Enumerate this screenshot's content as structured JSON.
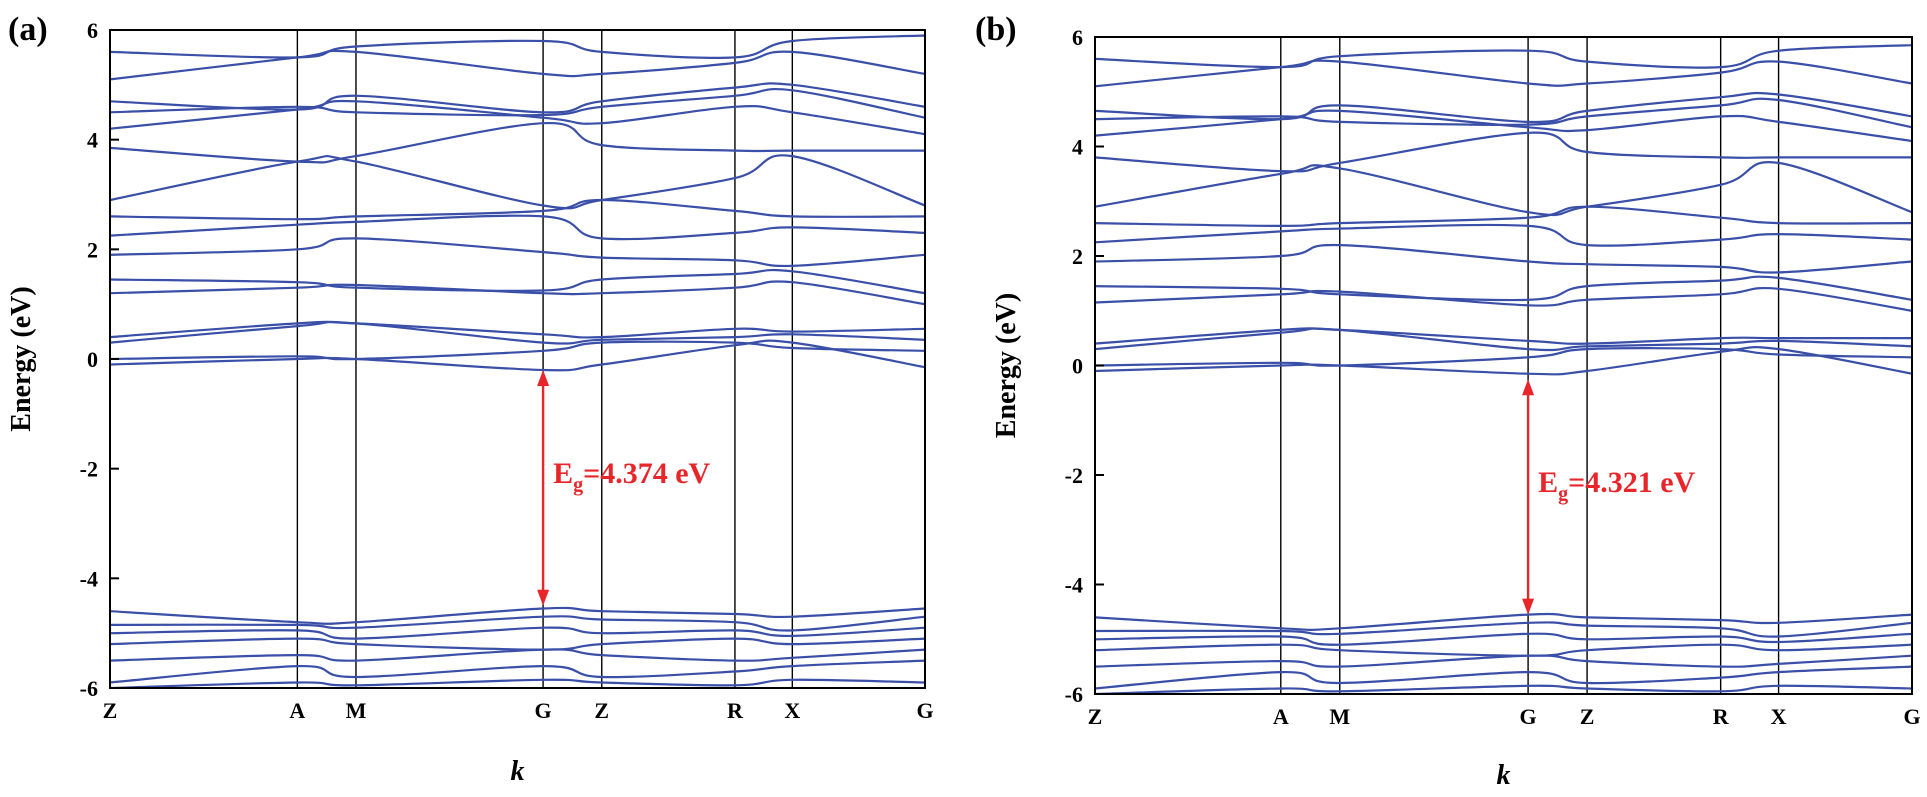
{
  "colors": {
    "band": "#3a4fa8",
    "gap": "#e8262a",
    "axis": "#000000"
  },
  "chart_data": [
    {
      "type": "line",
      "panel_label": "(a)",
      "title": "",
      "xlabel": "k",
      "ylabel": "Energy (eV)",
      "ylim": [
        -6,
        6
      ],
      "yticks": [
        "6",
        "4",
        "2",
        "0",
        "-2",
        "-4",
        "-6"
      ],
      "ytick_values": [
        6,
        4,
        2,
        0,
        -2,
        -4,
        -6
      ],
      "kpath": [
        {
          "label": "Z",
          "k": 0.0
        },
        {
          "label": "A",
          "k": 0.2299
        },
        {
          "label": "M",
          "k": 0.3018
        },
        {
          "label": "G",
          "k": 0.5314
        },
        {
          "label": "Z",
          "k": 0.6034
        },
        {
          "label": "R",
          "k": 0.7668
        },
        {
          "label": "X",
          "k": 0.8372
        },
        {
          "label": "G",
          "k": 1.0
        }
      ],
      "band_gap": {
        "prefix": "E",
        "subscript": "g",
        "value": "=4.374 eV",
        "k": 0.5314,
        "from": -4.5,
        "to": -0.2
      },
      "series": [
        {
          "name": "cb1",
          "values": [
            -0.1,
            0.0,
            0.0,
            -0.2,
            -0.1,
            0.25,
            0.3,
            -0.15
          ]
        },
        {
          "name": "cb2",
          "values": [
            0.0,
            0.05,
            0.0,
            0.15,
            0.3,
            0.3,
            0.2,
            0.15
          ]
        },
        {
          "name": "cb3",
          "values": [
            0.3,
            0.6,
            0.65,
            0.3,
            0.35,
            0.4,
            0.45,
            0.35
          ]
        },
        {
          "name": "cb4",
          "values": [
            0.4,
            0.65,
            0.65,
            0.45,
            0.4,
            0.55,
            0.5,
            0.55
          ]
        },
        {
          "name": "cb5",
          "values": [
            1.2,
            1.3,
            1.35,
            1.2,
            1.2,
            1.3,
            1.4,
            1.0
          ]
        },
        {
          "name": "cb6",
          "values": [
            1.45,
            1.4,
            1.3,
            1.25,
            1.45,
            1.55,
            1.6,
            1.2
          ]
        },
        {
          "name": "cb7",
          "values": [
            1.9,
            2.0,
            2.2,
            1.95,
            1.85,
            1.8,
            1.7,
            1.9
          ]
        },
        {
          "name": "cb8",
          "values": [
            2.25,
            2.45,
            2.5,
            2.6,
            2.2,
            2.3,
            2.4,
            2.3
          ]
        },
        {
          "name": "cb9",
          "values": [
            2.6,
            2.55,
            2.6,
            2.7,
            2.9,
            2.7,
            2.6,
            2.6
          ]
        },
        {
          "name": "cb10",
          "values": [
            2.9,
            3.6,
            3.6,
            2.8,
            2.9,
            3.3,
            3.7,
            2.8
          ]
        },
        {
          "name": "cb11",
          "values": [
            3.85,
            3.6,
            3.7,
            4.3,
            3.9,
            3.8,
            3.8,
            3.8
          ]
        },
        {
          "name": "cb12",
          "values": [
            4.2,
            4.55,
            4.7,
            4.4,
            4.3,
            4.6,
            4.5,
            4.1
          ]
        },
        {
          "name": "cb13",
          "values": [
            4.5,
            4.6,
            4.5,
            4.45,
            4.6,
            4.8,
            4.9,
            4.4
          ]
        },
        {
          "name": "cb14",
          "values": [
            4.7,
            4.55,
            4.8,
            4.5,
            4.7,
            4.95,
            5.0,
            4.6
          ]
        },
        {
          "name": "cb15",
          "values": [
            5.1,
            5.5,
            5.6,
            5.2,
            5.2,
            5.4,
            5.6,
            5.2
          ]
        },
        {
          "name": "cb16",
          "values": [
            5.6,
            5.5,
            5.7,
            5.8,
            5.6,
            5.5,
            5.8,
            5.9
          ]
        },
        {
          "name": "vb1",
          "values": [
            -4.6,
            -4.8,
            -4.8,
            -4.55,
            -4.6,
            -4.65,
            -4.7,
            -4.55
          ]
        },
        {
          "name": "vb2",
          "values": [
            -4.85,
            -4.85,
            -4.9,
            -4.7,
            -4.75,
            -4.8,
            -4.95,
            -4.7
          ]
        },
        {
          "name": "vb3",
          "values": [
            -5.0,
            -4.95,
            -5.1,
            -4.9,
            -5.0,
            -4.95,
            -5.05,
            -4.9
          ]
        },
        {
          "name": "vb4",
          "values": [
            -5.2,
            -5.1,
            -5.2,
            -5.3,
            -5.2,
            -5.1,
            -5.2,
            -5.1
          ]
        },
        {
          "name": "vb5",
          "values": [
            -5.5,
            -5.4,
            -5.5,
            -5.3,
            -5.4,
            -5.5,
            -5.45,
            -5.3
          ]
        },
        {
          "name": "vb6",
          "values": [
            -5.9,
            -5.6,
            -5.8,
            -5.6,
            -5.8,
            -5.7,
            -5.6,
            -5.5
          ]
        },
        {
          "name": "vb7",
          "values": [
            -6.0,
            -5.9,
            -5.95,
            -5.85,
            -5.9,
            -5.95,
            -5.85,
            -5.9
          ]
        }
      ]
    },
    {
      "type": "line",
      "panel_label": "(b)",
      "title": "",
      "xlabel": "k",
      "ylabel": "Energy (eV)",
      "ylim": [
        -6,
        6
      ],
      "yticks": [
        "6",
        "4",
        "2",
        "0",
        "-2",
        "-4",
        "-6"
      ],
      "ytick_values": [
        6,
        4,
        2,
        0,
        -2,
        -4,
        -6
      ],
      "kpath": [
        {
          "label": "Z",
          "k": 0.0
        },
        {
          "label": "A",
          "k": 0.2274
        },
        {
          "label": "M",
          "k": 0.2996
        },
        {
          "label": "G",
          "k": 0.5301
        },
        {
          "label": "Z",
          "k": 0.6023
        },
        {
          "label": "R",
          "k": 0.7658
        },
        {
          "label": "X",
          "k": 0.8367
        },
        {
          "label": "G",
          "k": 1.0
        }
      ],
      "band_gap": {
        "prefix": "E",
        "subscript": "g",
        "value": "=4.321 eV",
        "k": 0.5301,
        "from": -4.55,
        "to": -0.25
      },
      "series": [
        {
          "name": "cb1",
          "values": [
            -0.1,
            0.0,
            0.0,
            -0.15,
            -0.1,
            0.25,
            0.3,
            -0.15
          ]
        },
        {
          "name": "cb2",
          "values": [
            0.0,
            0.05,
            0.0,
            0.15,
            0.3,
            0.3,
            0.2,
            0.15
          ]
        },
        {
          "name": "cb3",
          "values": [
            0.3,
            0.6,
            0.65,
            0.3,
            0.35,
            0.4,
            0.45,
            0.35
          ]
        },
        {
          "name": "cb4",
          "values": [
            0.4,
            0.65,
            0.65,
            0.45,
            0.4,
            0.5,
            0.5,
            0.5
          ]
        },
        {
          "name": "cb5",
          "values": [
            1.15,
            1.3,
            1.35,
            1.1,
            1.2,
            1.3,
            1.4,
            1.0
          ]
        },
        {
          "name": "cb6",
          "values": [
            1.45,
            1.4,
            1.3,
            1.2,
            1.45,
            1.55,
            1.6,
            1.2
          ]
        },
        {
          "name": "cb7",
          "values": [
            1.9,
            2.0,
            2.2,
            1.9,
            1.85,
            1.8,
            1.7,
            1.9
          ]
        },
        {
          "name": "cb8",
          "values": [
            2.25,
            2.45,
            2.5,
            2.55,
            2.2,
            2.3,
            2.4,
            2.3
          ]
        },
        {
          "name": "cb9",
          "values": [
            2.6,
            2.55,
            2.6,
            2.7,
            2.9,
            2.7,
            2.6,
            2.6
          ]
        },
        {
          "name": "cb10",
          "values": [
            2.9,
            3.5,
            3.6,
            2.8,
            2.9,
            3.3,
            3.7,
            2.8
          ]
        },
        {
          "name": "cb11",
          "values": [
            3.8,
            3.55,
            3.7,
            4.25,
            3.9,
            3.8,
            3.8,
            3.8
          ]
        },
        {
          "name": "cb12",
          "values": [
            4.2,
            4.5,
            4.65,
            4.35,
            4.3,
            4.55,
            4.45,
            4.1
          ]
        },
        {
          "name": "cb13",
          "values": [
            4.5,
            4.55,
            4.45,
            4.4,
            4.55,
            4.75,
            4.85,
            4.35
          ]
        },
        {
          "name": "cb14",
          "values": [
            4.65,
            4.5,
            4.75,
            4.45,
            4.65,
            4.9,
            4.95,
            4.55
          ]
        },
        {
          "name": "cb15",
          "values": [
            5.1,
            5.45,
            5.55,
            5.15,
            5.15,
            5.35,
            5.55,
            5.15
          ]
        },
        {
          "name": "cb16",
          "values": [
            5.6,
            5.45,
            5.65,
            5.75,
            5.55,
            5.45,
            5.75,
            5.85
          ]
        },
        {
          "name": "vb1",
          "values": [
            -4.6,
            -4.8,
            -4.8,
            -4.55,
            -4.6,
            -4.65,
            -4.7,
            -4.55
          ]
        },
        {
          "name": "vb2",
          "values": [
            -4.85,
            -4.85,
            -4.9,
            -4.7,
            -4.75,
            -4.8,
            -4.95,
            -4.7
          ]
        },
        {
          "name": "vb3",
          "values": [
            -5.0,
            -4.95,
            -5.1,
            -4.9,
            -5.0,
            -4.95,
            -5.05,
            -4.9
          ]
        },
        {
          "name": "vb4",
          "values": [
            -5.2,
            -5.1,
            -5.2,
            -5.3,
            -5.2,
            -5.1,
            -5.2,
            -5.1
          ]
        },
        {
          "name": "vb5",
          "values": [
            -5.5,
            -5.4,
            -5.5,
            -5.3,
            -5.4,
            -5.5,
            -5.45,
            -5.3
          ]
        },
        {
          "name": "vb6",
          "values": [
            -5.9,
            -5.6,
            -5.8,
            -5.6,
            -5.8,
            -5.7,
            -5.6,
            -5.5
          ]
        },
        {
          "name": "vb7",
          "values": [
            -6.0,
            -5.9,
            -5.95,
            -5.85,
            -5.9,
            -5.95,
            -5.85,
            -5.9
          ]
        }
      ]
    }
  ]
}
